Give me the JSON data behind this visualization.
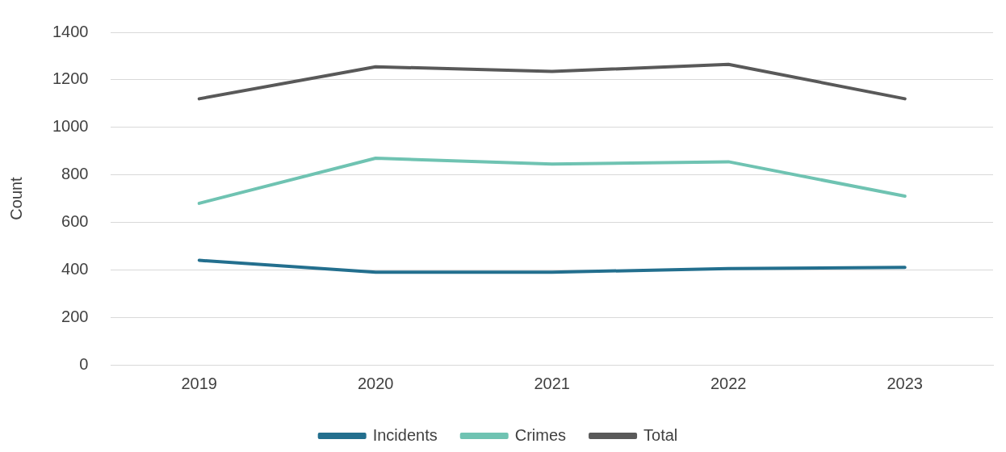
{
  "chart_data": {
    "type": "line",
    "ylabel": "Count",
    "categories": [
      "2019",
      "2020",
      "2021",
      "2022",
      "2023"
    ],
    "series": [
      {
        "name": "Incidents",
        "color": "#236f8e",
        "values": [
          440,
          390,
          390,
          405,
          410
        ]
      },
      {
        "name": "Crimes",
        "color": "#6fc3b2",
        "values": [
          680,
          870,
          845,
          855,
          710
        ]
      },
      {
        "name": "Total",
        "color": "#595959",
        "values": [
          1120,
          1255,
          1235,
          1265,
          1120
        ]
      }
    ],
    "ylim": [
      0,
      1400
    ],
    "yticks": [
      0,
      200,
      400,
      600,
      800,
      1000,
      1200,
      1400
    ],
    "grid": "y",
    "legend": "bottom",
    "marker": "none",
    "line_style": "solid"
  }
}
